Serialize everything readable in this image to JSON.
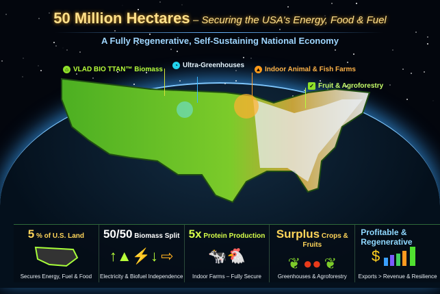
{
  "title": {
    "main": "50 Million Hectares",
    "rest": "– Securing the USA's Energy, Food & Fuel"
  },
  "subtitle": "A Fully Regenerative, Self-Sustaining National Economy",
  "map_labels": [
    {
      "text": "VLAD BIO TTAN™ Biomass",
      "color": "#b8ff3a",
      "icon": "leaf-house-icon"
    },
    {
      "text": "Ultra-Greenhouses",
      "color": "#e6f6ff",
      "icon": "greenhouse-icon",
      "icon_color": "#22d3ee"
    },
    {
      "text": "Indoor Animal & Fish Farms",
      "color": "#ffb347",
      "icon": "barn-icon"
    },
    {
      "text": "Fruit & Agroforestry",
      "color": "#c8ff6a",
      "icon": "tree-icon"
    }
  ],
  "panels": [
    {
      "headline": "5",
      "headline_rest": "% of U.S. Land",
      "caption": "Secures Energy, Fuel & Food",
      "icon": "us-map-icon"
    },
    {
      "headline": "50/50",
      "headline_rest": "Biomass Split",
      "caption": "Electricity & Biofuel Independence",
      "icon": "energy-arrows-icon"
    },
    {
      "headline": "5x",
      "headline_rest": "Protein Production",
      "caption": "Indoor Farms – Fully Secure",
      "icon": "livestock-icon"
    },
    {
      "headline": "Surplus",
      "headline_rest": "Crops & Fruits",
      "caption": "Greenhouses & Agroforestry",
      "icon": "fruit-icon"
    },
    {
      "headline": "Profitable &",
      "headline_rest": "Regenerative",
      "caption": "Exports > Revenue & Resilience",
      "icon": "growth-chart-icon"
    }
  ],
  "colors": {
    "title": "#ffe08a",
    "subtitle": "#9fd6ff",
    "map_green": "#5fbf2a",
    "panel_headline": "#ffd55a",
    "accent_blue": "#5ab4ff"
  }
}
